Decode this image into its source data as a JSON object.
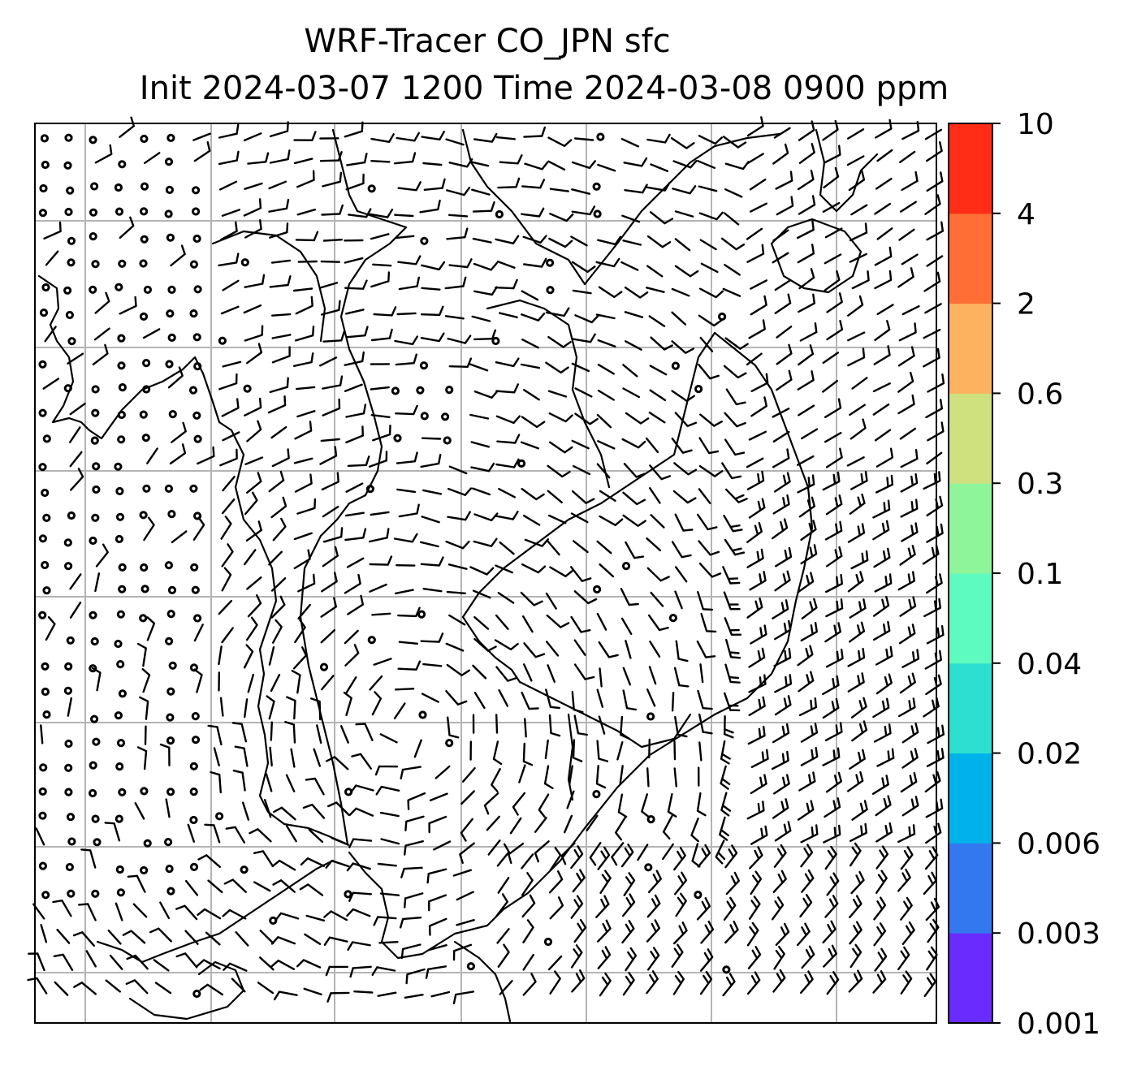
{
  "title": {
    "line1": "WRF-Tracer CO_JPN sfc",
    "line2": "Init 2024-03-07 1200 Time 2024-03-08 0900 ppm"
  },
  "colorbar": {
    "levels": [
      "0.001",
      "0.003",
      "0.006",
      "0.02",
      "0.04",
      "0.1",
      "0.3",
      "0.6",
      "2",
      "4",
      "10"
    ],
    "colors": [
      "#6a2bff",
      "#3478f0",
      "#00b2ea",
      "#2ddfd0",
      "#5dfbbf",
      "#8ef59a",
      "#cfe07f",
      "#fcb25e",
      "#ff6f35",
      "#ff2d15"
    ]
  },
  "map": {
    "grid": "on",
    "grid_color": "#b4b4b4",
    "coastline_color": "#000000",
    "wind_barbs": "on",
    "calm_markers": "circles",
    "field_fill": "none (white)"
  }
}
